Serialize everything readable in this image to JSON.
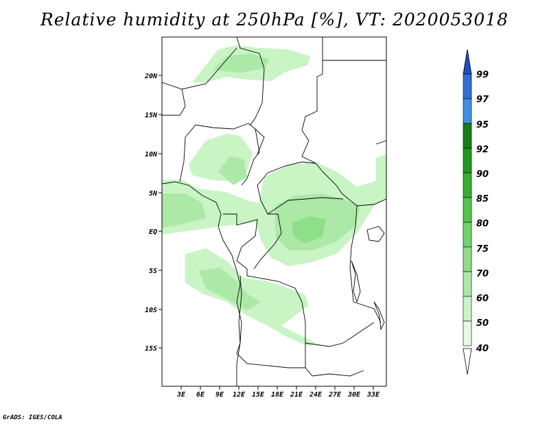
{
  "title": "Relative humidity at 250hPa [%], VT: 2020053018",
  "credit": "GrADS: IGES/COLA",
  "map": {
    "lon_labels": [
      "3E",
      "6E",
      "9E",
      "12E",
      "15E",
      "18E",
      "21E",
      "24E",
      "27E",
      "30E",
      "33E"
    ],
    "lat_labels": [
      "20N",
      "15N",
      "10N",
      "5N",
      "EQ",
      "5S",
      "10S",
      "15S"
    ],
    "colors": {
      "rh40": "#e6fbe4",
      "rh50": "#c9f4c4",
      "rh60": "#ace9a7",
      "rh70": "#8edf88",
      "border": "#000000",
      "frame": "#000000"
    }
  },
  "colorbar": {
    "levels": [
      "40",
      "50",
      "60",
      "70",
      "75",
      "80",
      "85",
      "90",
      "92",
      "95",
      "97",
      "99"
    ],
    "colors": [
      "#ffffff",
      "#e6fbe4",
      "#c9f4c4",
      "#ace9a7",
      "#8edf88",
      "#6fd469",
      "#4fc84a",
      "#33b130",
      "#1d9a1b",
      "#148012",
      "#3f8fe8",
      "#2f6fd8",
      "#1f4fc0"
    ]
  }
}
